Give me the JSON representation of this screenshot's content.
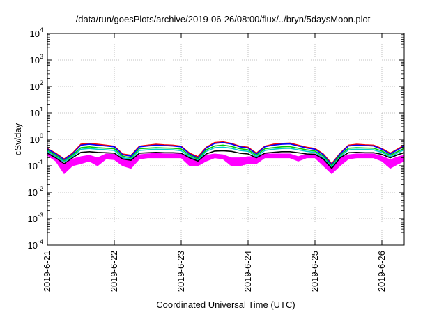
{
  "chart_data": {
    "type": "area",
    "title": "/data/run/goesPlots/archive/2019-06-26/08:00/flux/../bryn/5daysMoon.plot",
    "xlabel": "Coordinated Universal Time (UTC)",
    "ylabel": "cSv/day",
    "yscale": "log",
    "ylim": [
      0.0001,
      10000
    ],
    "y_ticks": [
      {
        "base": "10",
        "exp": "-4"
      },
      {
        "base": "10",
        "exp": "-3"
      },
      {
        "base": "10",
        "exp": "-2"
      },
      {
        "base": "10",
        "exp": "-1"
      },
      {
        "base": "10",
        "exp": "0"
      },
      {
        "base": "10",
        "exp": "1"
      },
      {
        "base": "10",
        "exp": "2"
      },
      {
        "base": "10",
        "exp": "3"
      },
      {
        "base": "10",
        "exp": "4"
      }
    ],
    "xlim": [
      "2019-06-21 00:00",
      "2019-06-26 08:00"
    ],
    "x_ticks": [
      "2019-6-21",
      "2019-6-22",
      "2019-6-23",
      "2019-6-24",
      "2019-6-25",
      "2019-6-26"
    ],
    "grid": true,
    "x": [
      "2019-06-21 00:00",
      "2019-06-21 03:00",
      "2019-06-21 06:00",
      "2019-06-21 09:00",
      "2019-06-21 12:00",
      "2019-06-21 15:00",
      "2019-06-21 18:00",
      "2019-06-21 21:00",
      "2019-06-22 00:00",
      "2019-06-22 03:00",
      "2019-06-22 06:00",
      "2019-06-22 09:00",
      "2019-06-22 12:00",
      "2019-06-22 15:00",
      "2019-06-22 18:00",
      "2019-06-22 21:00",
      "2019-06-23 00:00",
      "2019-06-23 03:00",
      "2019-06-23 06:00",
      "2019-06-23 09:00",
      "2019-06-23 12:00",
      "2019-06-23 15:00",
      "2019-06-23 18:00",
      "2019-06-23 21:00",
      "2019-06-24 00:00",
      "2019-06-24 03:00",
      "2019-06-24 06:00",
      "2019-06-24 09:00",
      "2019-06-24 12:00",
      "2019-06-24 15:00",
      "2019-06-24 18:00",
      "2019-06-24 21:00",
      "2019-06-25 00:00",
      "2019-06-25 03:00",
      "2019-06-25 06:00",
      "2019-06-25 09:00",
      "2019-06-25 12:00",
      "2019-06-25 15:00",
      "2019-06-25 18:00",
      "2019-06-25 21:00",
      "2019-06-26 00:00",
      "2019-06-26 03:00",
      "2019-06-26 06:00",
      "2019-06-26 08:00"
    ],
    "band": {
      "color": "#ff00ff",
      "lower": [
        0.25,
        0.15,
        0.05,
        0.1,
        0.12,
        0.15,
        0.1,
        0.18,
        0.17,
        0.1,
        0.08,
        0.18,
        0.2,
        0.2,
        0.2,
        0.2,
        0.2,
        0.1,
        0.1,
        0.15,
        0.2,
        0.18,
        0.1,
        0.1,
        0.12,
        0.12,
        0.2,
        0.2,
        0.2,
        0.2,
        0.15,
        0.2,
        0.2,
        0.1,
        0.05,
        0.1,
        0.18,
        0.2,
        0.2,
        0.2,
        0.15,
        0.08,
        0.12,
        0.15
      ],
      "upper": [
        0.3,
        0.25,
        0.12,
        0.18,
        0.22,
        0.25,
        0.2,
        0.28,
        0.27,
        0.2,
        0.18,
        0.26,
        0.28,
        0.3,
        0.28,
        0.28,
        0.28,
        0.2,
        0.2,
        0.25,
        0.28,
        0.26,
        0.2,
        0.2,
        0.22,
        0.22,
        0.28,
        0.28,
        0.28,
        0.28,
        0.22,
        0.28,
        0.28,
        0.2,
        0.12,
        0.2,
        0.26,
        0.28,
        0.28,
        0.28,
        0.23,
        0.17,
        0.22,
        0.25
      ]
    },
    "series": [
      {
        "color": "#ff0000",
        "values": [
          0.45,
          0.3,
          0.18,
          0.3,
          0.65,
          0.7,
          0.65,
          0.6,
          0.55,
          0.28,
          0.25,
          0.55,
          0.6,
          0.65,
          0.62,
          0.6,
          0.55,
          0.3,
          0.22,
          0.5,
          0.75,
          0.8,
          0.7,
          0.55,
          0.5,
          0.3,
          0.55,
          0.65,
          0.7,
          0.72,
          0.6,
          0.5,
          0.45,
          0.28,
          0.12,
          0.3,
          0.6,
          0.65,
          0.62,
          0.6,
          0.45,
          0.3,
          0.45,
          0.6
        ]
      },
      {
        "color": "#0000ff",
        "values": [
          0.43,
          0.28,
          0.17,
          0.28,
          0.6,
          0.65,
          0.6,
          0.56,
          0.52,
          0.26,
          0.23,
          0.52,
          0.56,
          0.6,
          0.58,
          0.56,
          0.52,
          0.28,
          0.2,
          0.47,
          0.7,
          0.75,
          0.66,
          0.52,
          0.47,
          0.28,
          0.52,
          0.6,
          0.65,
          0.67,
          0.56,
          0.47,
          0.42,
          0.26,
          0.11,
          0.28,
          0.56,
          0.6,
          0.58,
          0.56,
          0.42,
          0.28,
          0.42,
          0.56
        ]
      },
      {
        "color": "#00cc00",
        "values": [
          0.38,
          0.25,
          0.15,
          0.25,
          0.48,
          0.52,
          0.48,
          0.46,
          0.44,
          0.23,
          0.2,
          0.44,
          0.46,
          0.48,
          0.47,
          0.46,
          0.43,
          0.25,
          0.18,
          0.4,
          0.56,
          0.6,
          0.54,
          0.44,
          0.4,
          0.25,
          0.44,
          0.48,
          0.52,
          0.53,
          0.46,
          0.4,
          0.36,
          0.23,
          0.1,
          0.25,
          0.46,
          0.48,
          0.47,
          0.46,
          0.36,
          0.25,
          0.36,
          0.46
        ]
      },
      {
        "color": "#00cccc",
        "values": [
          0.35,
          0.22,
          0.14,
          0.22,
          0.42,
          0.45,
          0.42,
          0.4,
          0.38,
          0.2,
          0.18,
          0.38,
          0.4,
          0.42,
          0.41,
          0.4,
          0.37,
          0.22,
          0.16,
          0.35,
          0.48,
          0.5,
          0.46,
          0.38,
          0.35,
          0.22,
          0.38,
          0.42,
          0.45,
          0.46,
          0.4,
          0.35,
          0.32,
          0.2,
          0.09,
          0.22,
          0.4,
          0.42,
          0.41,
          0.4,
          0.32,
          0.22,
          0.32,
          0.4
        ]
      },
      {
        "color": "#000000",
        "values": [
          0.3,
          0.2,
          0.12,
          0.2,
          0.32,
          0.34,
          0.32,
          0.31,
          0.3,
          0.18,
          0.16,
          0.3,
          0.31,
          0.32,
          0.31,
          0.31,
          0.3,
          0.2,
          0.15,
          0.28,
          0.36,
          0.37,
          0.35,
          0.3,
          0.28,
          0.2,
          0.3,
          0.32,
          0.34,
          0.34,
          0.31,
          0.28,
          0.27,
          0.18,
          0.08,
          0.2,
          0.31,
          0.32,
          0.31,
          0.31,
          0.27,
          0.2,
          0.27,
          0.31
        ]
      }
    ]
  }
}
